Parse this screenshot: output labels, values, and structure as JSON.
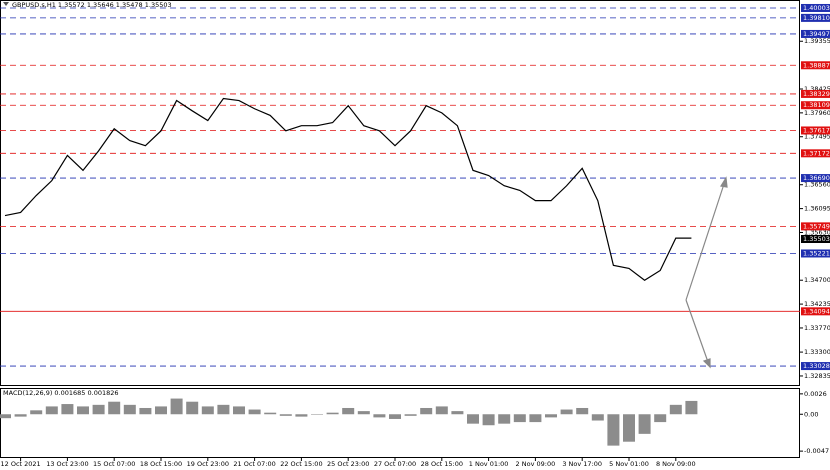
{
  "chart_data": [
    {
      "type": "line",
      "title": "GBPUSD.s,H1  1.35572 1.35646 1.35478 1.35503",
      "categories": [
        null,
        "12 Oct 2021",
        null,
        null,
        "13 Oct 23:00",
        null,
        null,
        "15 Oct 07:00",
        null,
        null,
        "18 Oct 15:00",
        null,
        null,
        "19 Oct 23:00",
        null,
        null,
        "21 Oct 07:00",
        null,
        null,
        "22 Oct 15:00",
        null,
        null,
        "25 Oct 23:00",
        null,
        null,
        "27 Oct 07:00",
        null,
        null,
        "28 Oct 15:00",
        null,
        null,
        "1 Nov 01:00",
        null,
        null,
        "2 Nov 09:00",
        null,
        null,
        "3 Nov 17:00",
        null,
        null,
        "5 Nov 01:00",
        null,
        null,
        "8 Nov 09:00",
        null
      ],
      "series": [
        {
          "name": "GBPUSD.s",
          "color": "#000000",
          "values": [
            1.3596,
            1.3602,
            1.3635,
            1.3664,
            1.3713,
            1.3684,
            1.3722,
            1.3765,
            1.3742,
            1.3732,
            1.3761,
            1.382,
            1.38,
            1.3781,
            1.3824,
            1.382,
            1.3804,
            1.3791,
            1.3761,
            1.3771,
            1.3771,
            1.3777,
            1.381,
            1.3771,
            1.3761,
            1.3732,
            1.3761,
            1.381,
            1.3796,
            1.3771,
            1.3684,
            1.3674,
            1.3654,
            1.3645,
            1.3625,
            1.3625,
            1.3654,
            1.3688,
            1.3625,
            1.3499,
            1.3493,
            1.347,
            1.3489,
            1.3552,
            1.3552
          ]
        }
      ],
      "ylim": [
        1.32659,
        1.40139
      ],
      "yticks": [
        {
          "value": 1.39355,
          "label": "1.39355"
        },
        {
          "value": 1.38425,
          "label": "1.38425"
        },
        {
          "value": 1.3796,
          "label": "1.37960"
        },
        {
          "value": 1.37495,
          "label": "1.37495"
        },
        {
          "value": 1.3656,
          "label": "1.36560"
        },
        {
          "value": 1.36095,
          "label": "1.36095"
        },
        {
          "value": 1.3563,
          "label": "1.35630"
        },
        {
          "value": 1.347,
          "label": "1.34700"
        },
        {
          "value": 1.34235,
          "label": "1.34235"
        },
        {
          "value": 1.3377,
          "label": "1.33770"
        },
        {
          "value": 1.333,
          "label": "1.33300"
        },
        {
          "value": 1.32835,
          "label": "1.32835"
        }
      ],
      "levels": [
        {
          "value": 1.40003,
          "label": "1.40003",
          "color": "#1f2fb0",
          "style": "dashed"
        },
        {
          "value": 1.3981,
          "label": "1.39810",
          "color": "#1f2fb0",
          "style": "dashed"
        },
        {
          "value": 1.39497,
          "label": "1.39497",
          "color": "#1f2fb0",
          "style": "dashed"
        },
        {
          "value": 1.38887,
          "label": "1.38887",
          "color": "#e01010",
          "style": "dashed"
        },
        {
          "value": 1.38329,
          "label": "1.38329",
          "color": "#e01010",
          "style": "dashed"
        },
        {
          "value": 1.38109,
          "label": "1.38109",
          "color": "#e01010",
          "style": "dashed"
        },
        {
          "value": 1.37617,
          "label": "1.37617",
          "color": "#e01010",
          "style": "dashed"
        },
        {
          "value": 1.37172,
          "label": "1.37172",
          "color": "#e01010",
          "style": "dashed"
        },
        {
          "value": 1.3669,
          "label": "1.36690",
          "color": "#1f2fb0",
          "style": "dashed"
        },
        {
          "value": 1.35749,
          "label": "1.35749",
          "color": "#e01010",
          "style": "dashed"
        },
        {
          "value": 1.35503,
          "label": "1.35503",
          "color": "#000000",
          "style": "none"
        },
        {
          "value": 1.35221,
          "label": "1.35221",
          "color": "#1f2fb0",
          "style": "dashed"
        },
        {
          "value": 1.34094,
          "label": "1.34094",
          "color": "#e01010",
          "style": "solid"
        },
        {
          "value": 1.33028,
          "label": "1.33028",
          "color": "#1f2fb0",
          "style": "dashed"
        }
      ]
    },
    {
      "type": "bar",
      "title": "MACD(12,26,9) 0.001685 0.001826",
      "color": "#8c8c8c",
      "values": [
        -0.0005,
        -0.0003,
        0.0005,
        0.001,
        0.0013,
        0.001,
        0.0012,
        0.0016,
        0.0012,
        0.0008,
        0.001,
        0.002,
        0.0016,
        0.001,
        0.0012,
        0.001,
        0.0006,
        0.0002,
        -0.0002,
        -0.0003,
        0.0,
        0.0002,
        0.0008,
        0.0004,
        -0.0004,
        -0.0006,
        -0.0002,
        0.0008,
        0.001,
        0.0004,
        -0.0012,
        -0.0014,
        -0.0012,
        -0.001,
        -0.001,
        -0.0004,
        0.0006,
        0.0008,
        -0.0008,
        -0.004,
        -0.0035,
        -0.0025,
        -0.001,
        0.0012,
        0.0017
      ],
      "ylim": [
        -0.00545,
        0.00322
      ],
      "yticks": [
        {
          "value": 0.0026,
          "label": "0.0026"
        },
        {
          "value": 0.0,
          "label": "0.00"
        },
        {
          "value": -0.0047,
          "label": "-0.0047"
        }
      ]
    }
  ]
}
